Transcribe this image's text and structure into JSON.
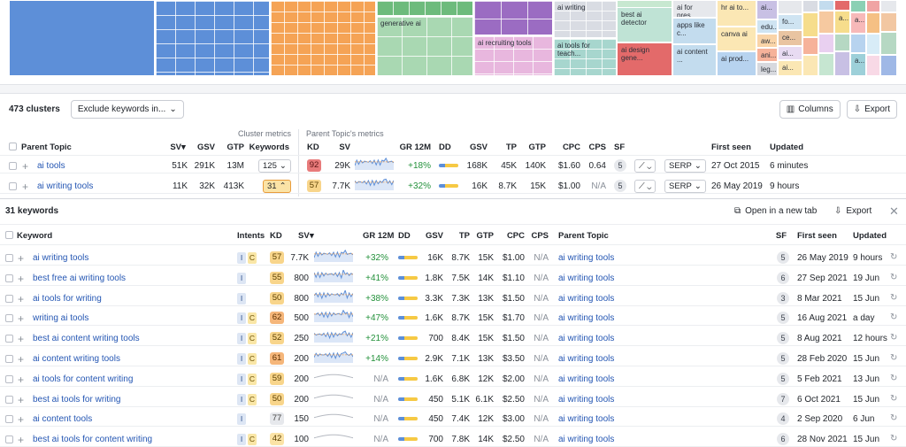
{
  "treemap": {
    "labels": {
      "generative": "generative ai",
      "recruiting": "ai recruiting tools",
      "ai_writing": "ai writing",
      "teach": "ai tools for teach...",
      "detector": "best ai detector",
      "design": "ai design gene...",
      "presentations": "ai for pres...",
      "apps": "apps like c...",
      "content": "ai content ...",
      "hr": "hr ai to...",
      "canva": "canva ai",
      "prod": "ai prod...",
      "edu": "edu...",
      "aw": "aw...",
      "ai2": "ai...",
      "ani": "ani...",
      "leg": "leg...",
      "fo": "fo...",
      "ce": "ce...",
      "ai3": "ai...",
      "ai4": "ai...",
      "a1": "a...",
      "a2": "a...",
      "a3": "a..."
    }
  },
  "toolbar": {
    "cluster_count": "473 clusters",
    "exclude_label": "Exclude keywords in...",
    "columns_label": "Columns",
    "export_label": "Export"
  },
  "clusters": {
    "group_cluster": "Cluster metrics",
    "group_parent": "Parent Topic's metrics",
    "headers": {
      "parent_topic": "Parent Topic",
      "sv": "SV",
      "gsv": "GSV",
      "gtp": "GTP",
      "keywords": "Keywords",
      "kd": "KD",
      "sv2": "SV",
      "gr": "GR 12M",
      "dd": "DD",
      "gsv2": "GSV",
      "tp": "TP",
      "gtp2": "GTP",
      "cpc": "CPC",
      "cps": "CPS",
      "sf": "SF",
      "first_seen": "First seen",
      "updated": "Updated"
    },
    "rows": [
      {
        "topic": "ai tools",
        "sv": "51K",
        "gsv": "291K",
        "gtp": "13M",
        "keywords": "125",
        "kd": "92",
        "sv2": "29K",
        "gr": "+18%",
        "gsv2": "168K",
        "tp": "45K",
        "gtp2": "140K",
        "cpc": "$1.60",
        "cps": "0.64",
        "sf": "5",
        "serp": "SERP",
        "first_seen": "27 Oct 2015",
        "updated": "6 minutes"
      },
      {
        "topic": "ai writing tools",
        "sv": "11K",
        "gsv": "32K",
        "gtp": "413K",
        "keywords": "31",
        "kd": "57",
        "sv2": "7.7K",
        "gr": "+32%",
        "gsv2": "16K",
        "tp": "8.7K",
        "gtp2": "15K",
        "cpc": "$1.00",
        "cps": "N/A",
        "sf": "5",
        "serp": "SERP",
        "first_seen": "26 May 2019",
        "updated": "9 hours"
      }
    ]
  },
  "keywords": {
    "count": "31 keywords",
    "open_tab": "Open in a new tab",
    "export": "Export",
    "headers": {
      "keyword": "Keyword",
      "intents": "Intents",
      "kd": "KD",
      "sv": "SV",
      "gr": "GR 12M",
      "dd": "DD",
      "gsv": "GSV",
      "tp": "TP",
      "gtp": "GTP",
      "cpc": "CPC",
      "cps": "CPS",
      "parent": "Parent Topic",
      "sf": "SF",
      "first_seen": "First seen",
      "updated": "Updated"
    },
    "rows": [
      {
        "kw": "ai writing tools",
        "intents": [
          "I",
          "C"
        ],
        "kd": "57",
        "sv": "7.7K",
        "gr": "+32%",
        "gsv": "16K",
        "tp": "8.7K",
        "gtp": "15K",
        "cpc": "$1.00",
        "cps": "N/A",
        "parent": "ai writing tools",
        "sf": "5",
        "first": "26 May 2019",
        "upd": "9 hours"
      },
      {
        "kw": "best free ai writing tools",
        "intents": [
          "I"
        ],
        "kd": "55",
        "sv": "800",
        "gr": "+41%",
        "gsv": "1.8K",
        "tp": "7.5K",
        "gtp": "14K",
        "cpc": "$1.10",
        "cps": "N/A",
        "parent": "ai writing tools",
        "sf": "6",
        "first": "27 Sep 2021",
        "upd": "19 Jun"
      },
      {
        "kw": "ai tools for writing",
        "intents": [
          "I"
        ],
        "kd": "50",
        "sv": "800",
        "gr": "+38%",
        "gsv": "3.3K",
        "tp": "7.3K",
        "gtp": "13K",
        "cpc": "$1.50",
        "cps": "N/A",
        "parent": "ai writing tools",
        "sf": "3",
        "first": "8 Mar 2021",
        "upd": "15 Jun"
      },
      {
        "kw": "writing ai tools",
        "intents": [
          "I",
          "C"
        ],
        "kd": "62",
        "sv": "500",
        "gr": "+47%",
        "gsv": "1.6K",
        "tp": "8.7K",
        "gtp": "15K",
        "cpc": "$1.70",
        "cps": "N/A",
        "parent": "ai writing tools",
        "sf": "5",
        "first": "16 Aug 2021",
        "upd": "a day"
      },
      {
        "kw": "best ai content writing tools",
        "intents": [
          "I",
          "C"
        ],
        "kd": "52",
        "sv": "250",
        "gr": "+21%",
        "gsv": "700",
        "tp": "8.4K",
        "gtp": "15K",
        "cpc": "$1.50",
        "cps": "N/A",
        "parent": "ai writing tools",
        "sf": "5",
        "first": "8 Aug 2021",
        "upd": "12 hours"
      },
      {
        "kw": "ai content writing tools",
        "intents": [
          "I",
          "C"
        ],
        "kd": "61",
        "sv": "200",
        "gr": "+14%",
        "gsv": "2.9K",
        "tp": "7.1K",
        "gtp": "13K",
        "cpc": "$3.50",
        "cps": "N/A",
        "parent": "ai writing tools",
        "sf": "5",
        "first": "28 Feb 2020",
        "upd": "15 Jun"
      },
      {
        "kw": "ai tools for content writing",
        "intents": [
          "I",
          "C"
        ],
        "kd": "59",
        "sv": "200",
        "gr": "N/A",
        "gsv": "1.6K",
        "tp": "6.8K",
        "gtp": "12K",
        "cpc": "$2.00",
        "cps": "N/A",
        "parent": "ai writing tools",
        "sf": "5",
        "first": "5 Feb 2021",
        "upd": "13 Jun"
      },
      {
        "kw": "best ai tools for writing",
        "intents": [
          "I",
          "C"
        ],
        "kd": "50",
        "sv": "200",
        "gr": "N/A",
        "gsv": "450",
        "tp": "5.1K",
        "gtp": "6.1K",
        "cpc": "$2.50",
        "cps": "N/A",
        "parent": "ai writing tools",
        "sf": "7",
        "first": "6 Oct 2021",
        "upd": "15 Jun"
      },
      {
        "kw": "ai content tools",
        "intents": [
          "I"
        ],
        "kd": "77",
        "sv": "150",
        "gr": "N/A",
        "gsv": "450",
        "tp": "7.4K",
        "gtp": "12K",
        "cpc": "$3.00",
        "cps": "N/A",
        "parent": "ai writing tools",
        "sf": "4",
        "first": "2 Sep 2020",
        "upd": "6 Jun"
      },
      {
        "kw": "best ai tools for content writing",
        "intents": [
          "I",
          "C"
        ],
        "kd": "42",
        "sv": "100",
        "gr": "N/A",
        "gsv": "700",
        "tp": "7.8K",
        "gtp": "14K",
        "cpc": "$2.50",
        "cps": "N/A",
        "parent": "ai writing tools",
        "sf": "6",
        "first": "28 Nov 2021",
        "upd": "15 Jun"
      }
    ]
  },
  "colors": {
    "blue": "#5d8fd8",
    "orange": "#f5a355",
    "green": "#6dbb7c",
    "purple": "#9b6cc2",
    "pink": "#e8b7de",
    "teal": "#9fd2c6",
    "red": "#e36a6a",
    "yellow": "#f6dd8c",
    "link": "#2456b3"
  },
  "icons": [
    "columns-icon",
    "export-icon",
    "open-tab-icon",
    "close-icon",
    "chevron-down-icon",
    "sort-down-icon",
    "refresh-icon",
    "trend-icon",
    "plus-icon"
  ]
}
